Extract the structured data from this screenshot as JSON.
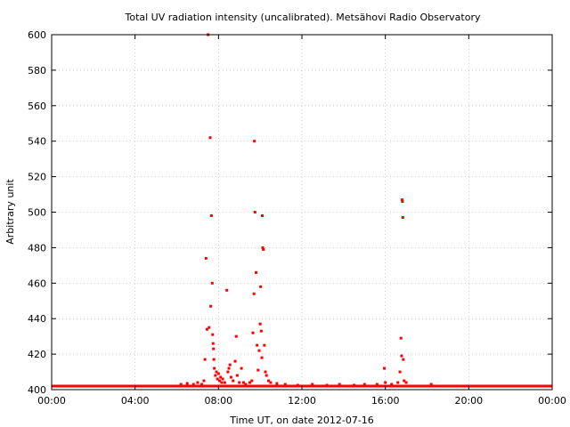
{
  "chart_data": {
    "type": "scatter",
    "title": "Total UV radiation intensity (uncalibrated). Metsähovi Radio Observatory",
    "xlabel": "Time UT, on date 2012-07-16",
    "ylabel": "Arbitrary unit",
    "xlim": [
      0,
      24
    ],
    "ylim": [
      400,
      600
    ],
    "xticks": [
      {
        "value": 0,
        "label": "00:00"
      },
      {
        "value": 4,
        "label": "04:00"
      },
      {
        "value": 8,
        "label": "08:00"
      },
      {
        "value": 12,
        "label": "12:00"
      },
      {
        "value": 16,
        "label": "16:00"
      },
      {
        "value": 20,
        "label": "20:00"
      },
      {
        "value": 24,
        "label": "00:00"
      }
    ],
    "yticks": [
      {
        "value": 400,
        "label": "400"
      },
      {
        "value": 420,
        "label": "420"
      },
      {
        "value": 440,
        "label": "440"
      },
      {
        "value": 460,
        "label": "460"
      },
      {
        "value": 480,
        "label": "480"
      },
      {
        "value": 500,
        "label": "500"
      },
      {
        "value": 520,
        "label": "520"
      },
      {
        "value": 540,
        "label": "540"
      },
      {
        "value": 560,
        "label": "560"
      },
      {
        "value": 580,
        "label": "580"
      },
      {
        "value": 600,
        "label": "600"
      }
    ],
    "grid": true,
    "marker_color": "#ff0000",
    "baseline": {
      "value": 402,
      "x_start": 0,
      "x_end": 24
    },
    "points": [
      {
        "x": 6.2,
        "y": 403
      },
      {
        "x": 6.5,
        "y": 403.5
      },
      {
        "x": 6.8,
        "y": 403
      },
      {
        "x": 7.0,
        "y": 404
      },
      {
        "x": 7.2,
        "y": 403
      },
      {
        "x": 7.3,
        "y": 405
      },
      {
        "x": 7.35,
        "y": 417
      },
      {
        "x": 7.4,
        "y": 474
      },
      {
        "x": 7.45,
        "y": 434
      },
      {
        "x": 7.5,
        "y": 600
      },
      {
        "x": 7.55,
        "y": 435
      },
      {
        "x": 7.6,
        "y": 542
      },
      {
        "x": 7.63,
        "y": 447
      },
      {
        "x": 7.66,
        "y": 498
      },
      {
        "x": 7.7,
        "y": 460
      },
      {
        "x": 7.72,
        "y": 431
      },
      {
        "x": 7.74,
        "y": 426
      },
      {
        "x": 7.76,
        "y": 423
      },
      {
        "x": 7.78,
        "y": 417
      },
      {
        "x": 7.8,
        "y": 412
      },
      {
        "x": 7.85,
        "y": 408
      },
      {
        "x": 7.9,
        "y": 410
      },
      {
        "x": 7.95,
        "y": 406
      },
      {
        "x": 8.0,
        "y": 409
      },
      {
        "x": 8.05,
        "y": 405
      },
      {
        "x": 8.1,
        "y": 407
      },
      {
        "x": 8.15,
        "y": 404
      },
      {
        "x": 8.2,
        "y": 406
      },
      {
        "x": 8.3,
        "y": 404
      },
      {
        "x": 8.4,
        "y": 456
      },
      {
        "x": 8.45,
        "y": 410
      },
      {
        "x": 8.5,
        "y": 412
      },
      {
        "x": 8.55,
        "y": 414
      },
      {
        "x": 8.6,
        "y": 407
      },
      {
        "x": 8.7,
        "y": 405
      },
      {
        "x": 8.8,
        "y": 416
      },
      {
        "x": 8.85,
        "y": 430
      },
      {
        "x": 8.9,
        "y": 408
      },
      {
        "x": 9.0,
        "y": 404
      },
      {
        "x": 9.1,
        "y": 412
      },
      {
        "x": 9.2,
        "y": 404
      },
      {
        "x": 9.3,
        "y": 403
      },
      {
        "x": 9.5,
        "y": 404
      },
      {
        "x": 9.6,
        "y": 405
      },
      {
        "x": 9.65,
        "y": 432
      },
      {
        "x": 9.7,
        "y": 454
      },
      {
        "x": 9.72,
        "y": 540
      },
      {
        "x": 9.75,
        "y": 500
      },
      {
        "x": 9.8,
        "y": 466
      },
      {
        "x": 9.85,
        "y": 425
      },
      {
        "x": 9.9,
        "y": 411
      },
      {
        "x": 9.95,
        "y": 422
      },
      {
        "x": 10.0,
        "y": 437
      },
      {
        "x": 10.02,
        "y": 458
      },
      {
        "x": 10.05,
        "y": 433
      },
      {
        "x": 10.08,
        "y": 418
      },
      {
        "x": 10.1,
        "y": 498
      },
      {
        "x": 10.12,
        "y": 480
      },
      {
        "x": 10.15,
        "y": 479
      },
      {
        "x": 10.2,
        "y": 425
      },
      {
        "x": 10.25,
        "y": 410
      },
      {
        "x": 10.3,
        "y": 408
      },
      {
        "x": 10.4,
        "y": 405
      },
      {
        "x": 10.5,
        "y": 404
      },
      {
        "x": 10.8,
        "y": 403.5
      },
      {
        "x": 11.2,
        "y": 403
      },
      {
        "x": 11.8,
        "y": 402.5
      },
      {
        "x": 12.5,
        "y": 403
      },
      {
        "x": 13.2,
        "y": 402.5
      },
      {
        "x": 13.8,
        "y": 403
      },
      {
        "x": 14.5,
        "y": 402.5
      },
      {
        "x": 15.0,
        "y": 403
      },
      {
        "x": 15.6,
        "y": 403
      },
      {
        "x": 15.95,
        "y": 412
      },
      {
        "x": 16.0,
        "y": 404
      },
      {
        "x": 16.3,
        "y": 403
      },
      {
        "x": 16.6,
        "y": 404
      },
      {
        "x": 16.7,
        "y": 410
      },
      {
        "x": 16.75,
        "y": 429
      },
      {
        "x": 16.78,
        "y": 419
      },
      {
        "x": 16.8,
        "y": 507
      },
      {
        "x": 16.82,
        "y": 506
      },
      {
        "x": 16.84,
        "y": 497
      },
      {
        "x": 16.86,
        "y": 417
      },
      {
        "x": 16.9,
        "y": 405
      },
      {
        "x": 17.0,
        "y": 404
      },
      {
        "x": 18.2,
        "y": 403
      }
    ]
  }
}
